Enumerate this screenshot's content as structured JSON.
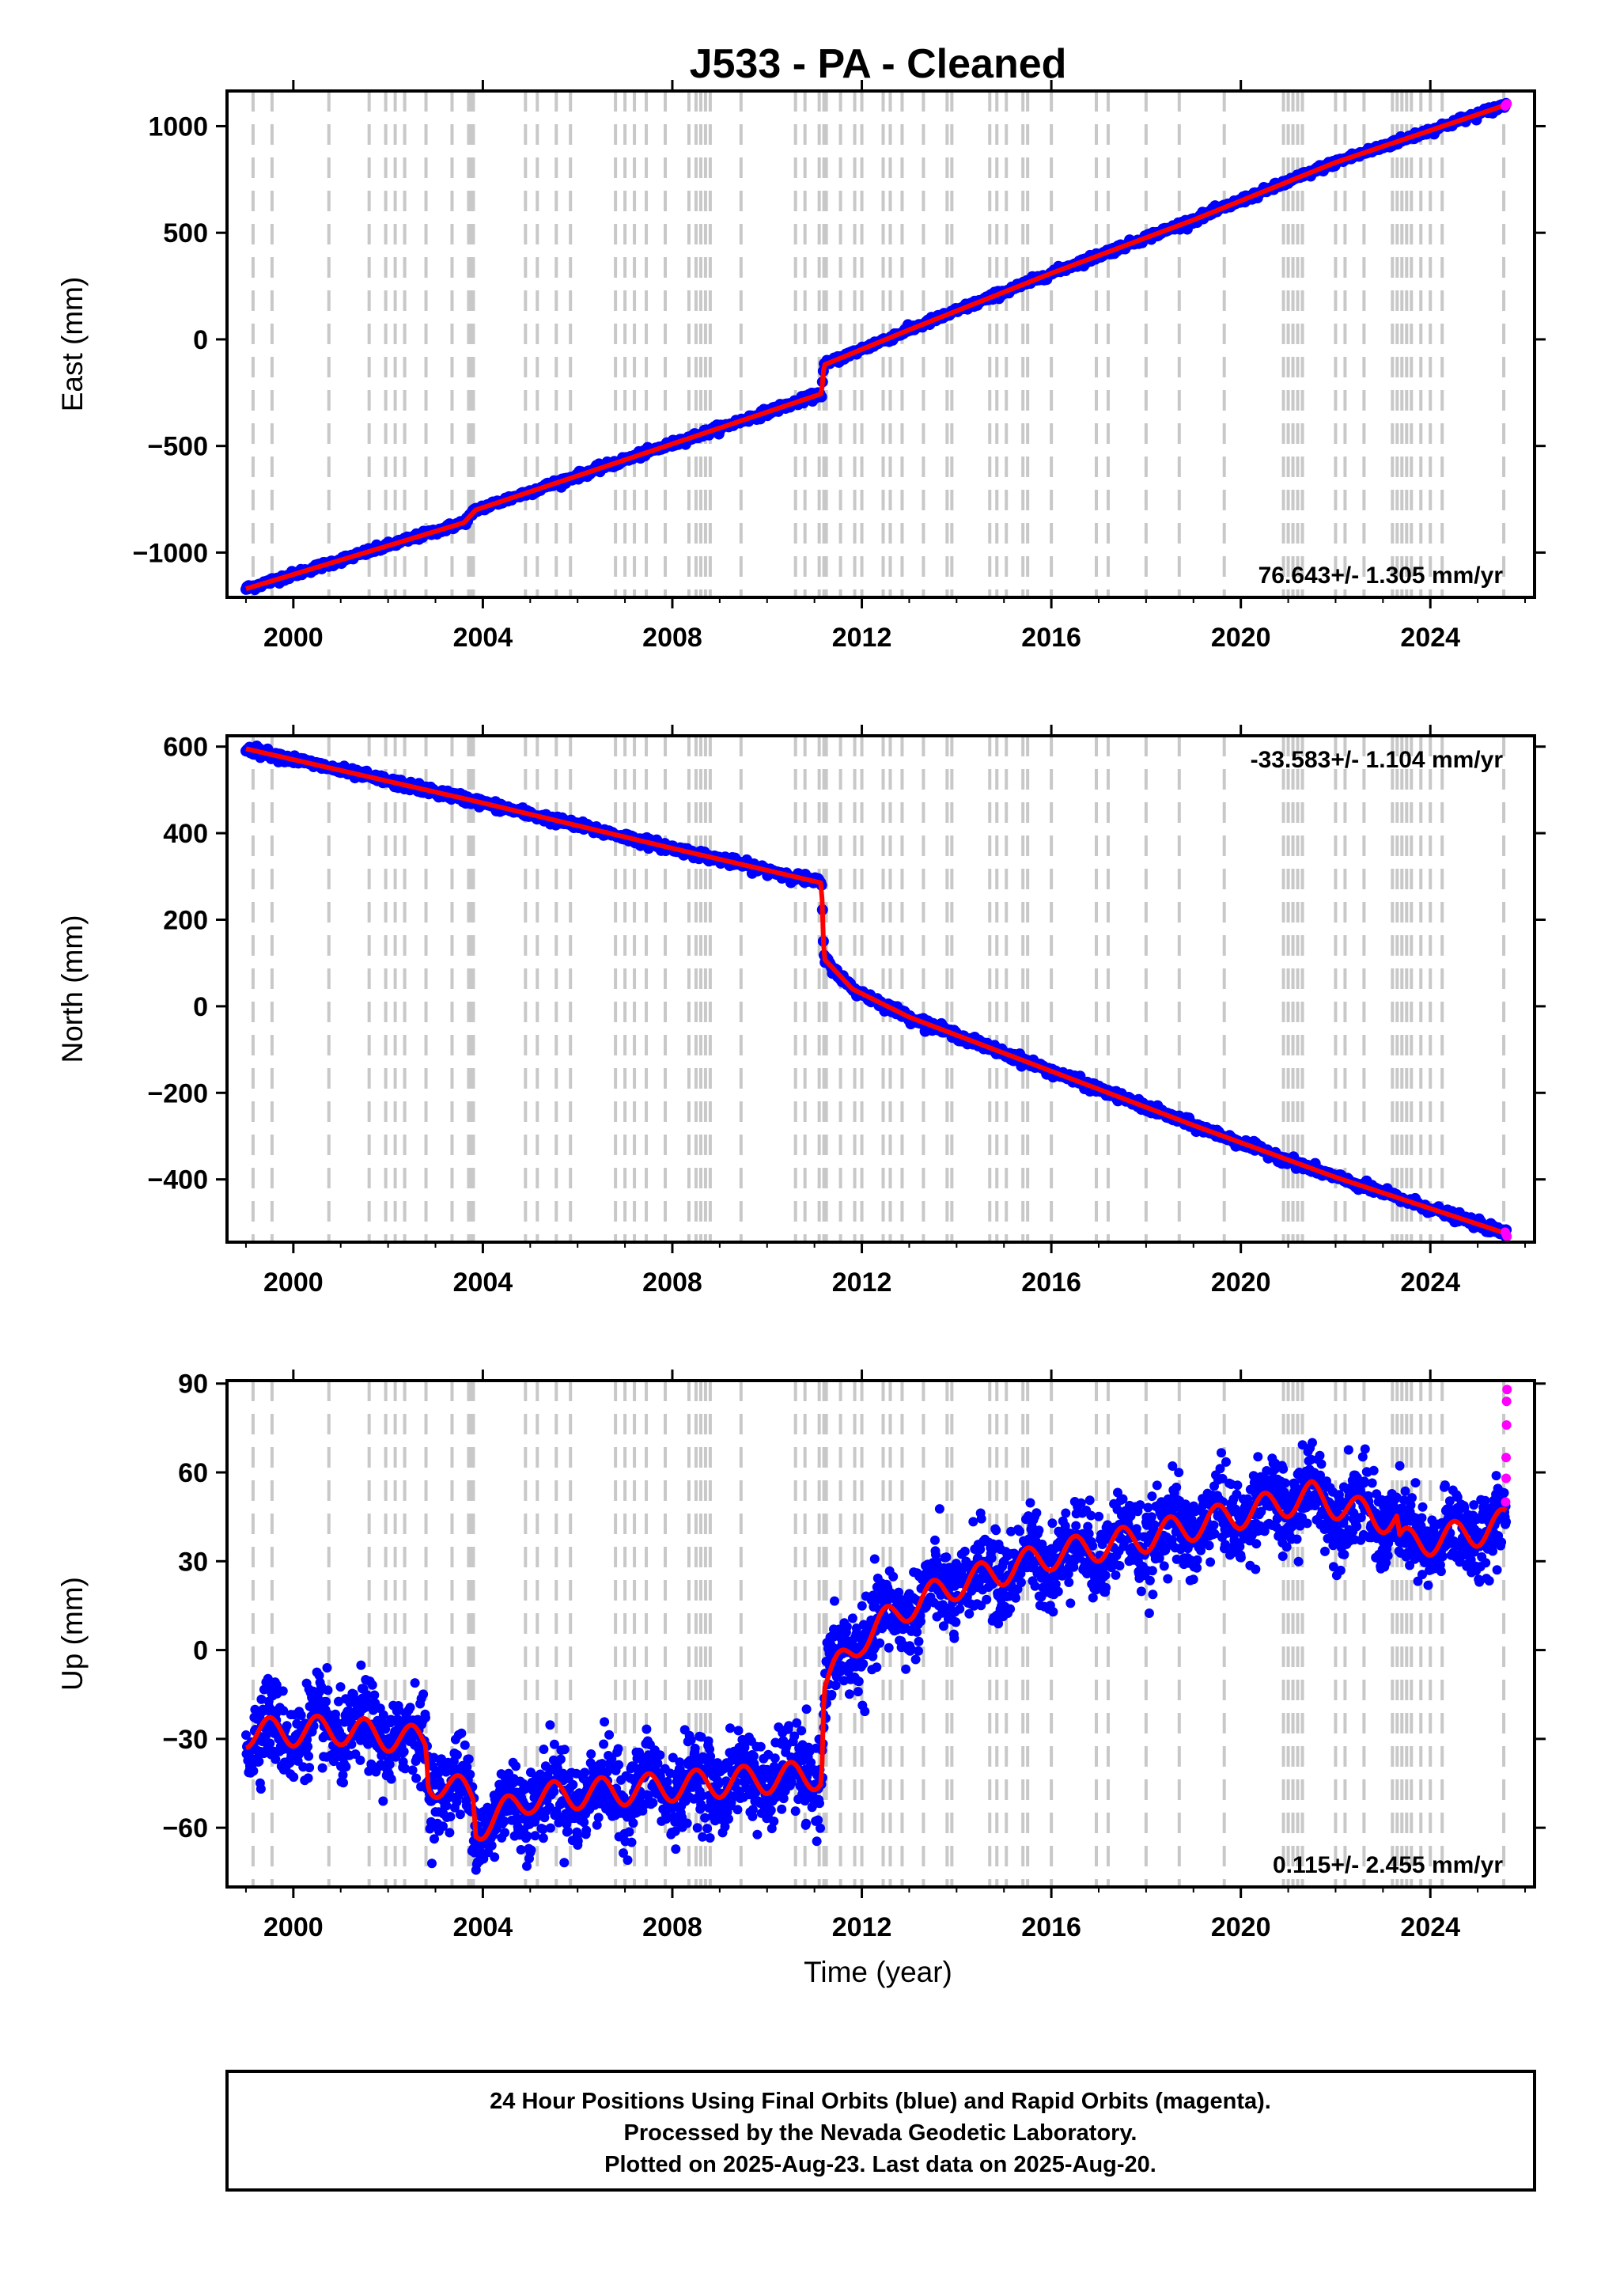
{
  "chart_data": {
    "type": "scatter",
    "title": "J533  - PA - Cleaned",
    "xlabel": "Time (year)",
    "xlim": [
      1998.6,
      2026.2
    ],
    "x_ticks": [
      2000,
      2004,
      2008,
      2012,
      2016,
      2020,
      2024
    ],
    "x_tick_labels": [
      "2000",
      "2004",
      "2008",
      "2012",
      "2016",
      "2020",
      "2024"
    ],
    "colors": {
      "final": "#0000ff",
      "rapid": "#ff00ff",
      "model": "#ff0000",
      "steps": "#c8c8c8"
    },
    "step_lines": [
      1999.15,
      1999.55,
      2000.75,
      2001.6,
      2001.95,
      2002.15,
      2002.35,
      2002.8,
      2003.35,
      2003.7,
      2003.75,
      2003.8,
      2004.9,
      2005.15,
      2005.55,
      2005.85,
      2006.8,
      2007.0,
      2007.2,
      2007.45,
      2007.85,
      2008.35,
      2008.5,
      2008.6,
      2008.7,
      2008.8,
      2009.45,
      2010.6,
      2010.8,
      2011.1,
      2011.2,
      2011.25,
      2011.55,
      2011.85,
      2012.0,
      2012.45,
      2012.6,
      2012.85,
      2013.3,
      2013.8,
      2013.9,
      2014.7,
      2014.85,
      2015.05,
      2015.4,
      2015.5,
      2016.0,
      2016.95,
      2017.2,
      2018.0,
      2018.7,
      2019.65,
      2020.9,
      2021.0,
      2021.1,
      2021.2,
      2021.3,
      2022.0,
      2022.2,
      2022.6,
      2023.2,
      2023.3,
      2023.4,
      2023.5,
      2023.6,
      2023.8,
      2024.0,
      2024.25,
      2025.55
    ],
    "panels": [
      {
        "name": "east",
        "ylabel": "East (mm)",
        "ylim": [
          -1210,
          1165
        ],
        "y_ticks": [
          -1000,
          -500,
          0,
          500,
          1000
        ],
        "y_tick_labels": [
          "−1000",
          "−500",
          "0",
          "500",
          "1000"
        ],
        "rate_text": "76.643+/- 1.305 mm/yr",
        "rate_position": "bottom-right",
        "model_x": [
          1999.0,
          2003.6,
          2003.85,
          2006.0,
          2011.15,
          2011.2,
          2013.0,
          2016.0,
          2019.0,
          2022.0,
          2025.6
        ],
        "model_y": [
          -1170,
          -860,
          -800,
          -640,
          -255,
          -120,
          45,
          310,
          560,
          830,
          1100
        ],
        "noise": 8,
        "rapid_x": [
          2025.58,
          2025.6,
          2025.62
        ],
        "rapid_y": [
          1095,
          1100,
          1105
        ]
      },
      {
        "name": "north",
        "ylabel": "North (mm)",
        "ylim": [
          -545,
          625
        ],
        "y_ticks": [
          -400,
          -200,
          0,
          200,
          400,
          600
        ],
        "y_tick_labels": [
          "−400",
          "−200",
          "0",
          "200",
          "400",
          "600"
        ],
        "rate_text": "-33.583+/- 1.104 mm/yr",
        "rate_position": "top-right",
        "model_x": [
          1999.0,
          2000.0,
          2003.8,
          2008.0,
          2011.15,
          2011.2,
          2011.8,
          2013.0,
          2016.0,
          2019.0,
          2022.0,
          2025.6
        ],
        "model_y": [
          595,
          570,
          475,
          365,
          285,
          110,
          40,
          -25,
          -150,
          -275,
          -395,
          -525
        ],
        "noise": 5,
        "rapid_x": [
          2025.58,
          2025.6,
          2025.62
        ],
        "rapid_y": [
          -522,
          -527,
          -532
        ]
      },
      {
        "name": "up",
        "ylabel": "Up (mm)",
        "ylim": [
          -80,
          91
        ],
        "y_ticks": [
          -60,
          -30,
          0,
          30,
          60,
          90
        ],
        "y_tick_labels": [
          "−60",
          "−30",
          "0",
          "30",
          "60",
          "90"
        ],
        "rate_text": "0.115+/- 2.455 mm/yr",
        "rate_position": "bottom-right",
        "model_x": [
          1999.0,
          2001.0,
          2002.8,
          2002.85,
          2003.8,
          2003.85,
          2005.0,
          2011.15,
          2011.2,
          2012.0,
          2013.0,
          2014.0,
          2016.0,
          2018.0,
          2020.0,
          2021.5,
          2022.8,
          2023.3,
          2023.35,
          2024.0,
          2025.0,
          2025.6
        ],
        "model_y": [
          -28,
          -27,
          -31,
          -44,
          -49,
          -60,
          -50,
          -42,
          -12,
          4,
          15,
          22,
          32,
          38,
          46,
          52,
          45,
          44,
          36,
          37,
          40,
          43
        ],
        "season_amp": 5,
        "noise": 7,
        "rapid_x": [
          2025.59,
          2025.6,
          2025.6,
          2025.61,
          2025.61,
          2025.62
        ],
        "rapid_y": [
          50,
          58,
          65,
          76,
          84,
          88
        ]
      }
    ]
  },
  "footer": {
    "lines": [
      "24 Hour Positions Using Final Orbits (blue) and Rapid Orbits (magenta).",
      "Processed by the Nevada Geodetic Laboratory.",
      "Plotted on 2025-Aug-23. Last data on 2025-Aug-20."
    ]
  }
}
